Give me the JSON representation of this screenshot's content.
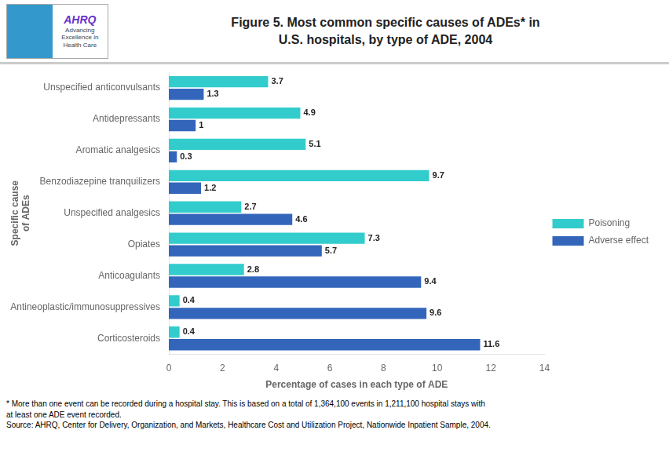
{
  "chart_data": {
    "type": "bar",
    "orientation": "horizontal",
    "title": [
      "Figure 5. Most common specific causes of ADEs* in",
      "U.S. hospitals, by type of ADE, 2004"
    ],
    "x_label": "Percentage of cases in each type of ADE",
    "y_label": [
      "Specific cause",
      "of ADEs"
    ],
    "categories": [
      "Corticosteroids",
      "Antineoplastic/immunosuppressives",
      "Anticoagulants",
      "Opiates",
      "Unspecified analgesics",
      "Benzodiazepine tranquilizers",
      "Aromatic analgesics",
      "Antidepressants",
      "Unspecified anticonvulsants"
    ],
    "series": [
      {
        "name": "Poisoning",
        "color": "#33CCCC",
        "values": [
          0.4,
          0.4,
          2.8,
          7.3,
          2.7,
          9.7,
          5.1,
          4.9,
          3.7
        ]
      },
      {
        "name": "Adverse effect",
        "color": "#3366BB",
        "values": [
          11.6,
          9.6,
          9.4,
          5.7,
          4.6,
          1.2,
          0.3,
          1.0,
          1.3
        ]
      }
    ],
    "xlim": [
      0,
      14
    ],
    "xticks": [
      0,
      2,
      4,
      6,
      8,
      10,
      12,
      14
    ],
    "grid": false,
    "legend": "right",
    "data_labels": true,
    "logo_text": [
      "AHRQ",
      "Advancing",
      "Excellence in",
      "Health Care"
    ],
    "annotations": [
      "* More than one event can be recorded during a hospital stay. This is based on a total of 1,364,100 events in 1,211,100 hospital stays with",
      "at least one ADE event recorded.",
      "Source: AHRQ, Center for Delivery, Organization, and Markets, Healthcare Cost and Utilization Project, Nationwide Inpatient Sample, 2004."
    ]
  }
}
